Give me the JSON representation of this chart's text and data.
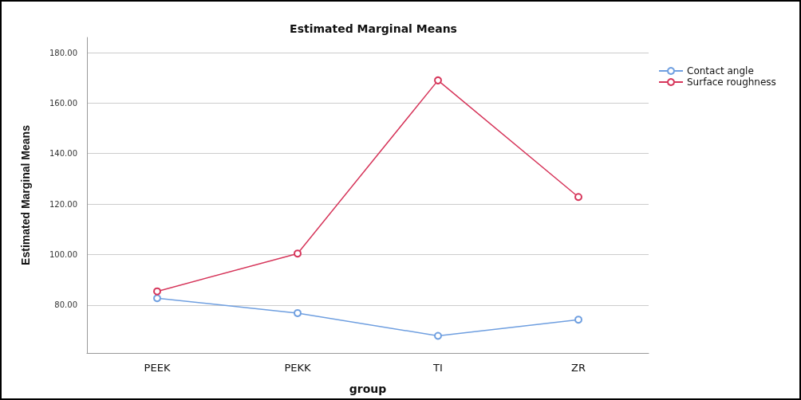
{
  "chart_data": {
    "type": "line",
    "title": "Estimated Marginal Means",
    "xlabel": "group",
    "ylabel": "Estimated Marginal Means",
    "categories": [
      "PEEK",
      "PEKK",
      "TI",
      "ZR"
    ],
    "series": [
      {
        "name": "Contact angle",
        "color": "#6f9fe0",
        "values": [
          82.7,
          76.8,
          67.8,
          74.2
        ]
      },
      {
        "name": "Surface roughness",
        "color": "#d6355a",
        "values": [
          85.4,
          100.4,
          169.0,
          122.8
        ]
      }
    ],
    "ylim": [
      61,
      186
    ],
    "yticks": [
      {
        "value": 80,
        "label": "80.00"
      },
      {
        "value": 100,
        "label": "100.00"
      },
      {
        "value": 120,
        "label": "120.00"
      },
      {
        "value": 140,
        "label": "140.00"
      },
      {
        "value": 160,
        "label": "160.00"
      },
      {
        "value": 180,
        "label": "180.00"
      }
    ],
    "grid": "y",
    "legend": "top right",
    "marker": "circle",
    "line_style": "solid"
  }
}
